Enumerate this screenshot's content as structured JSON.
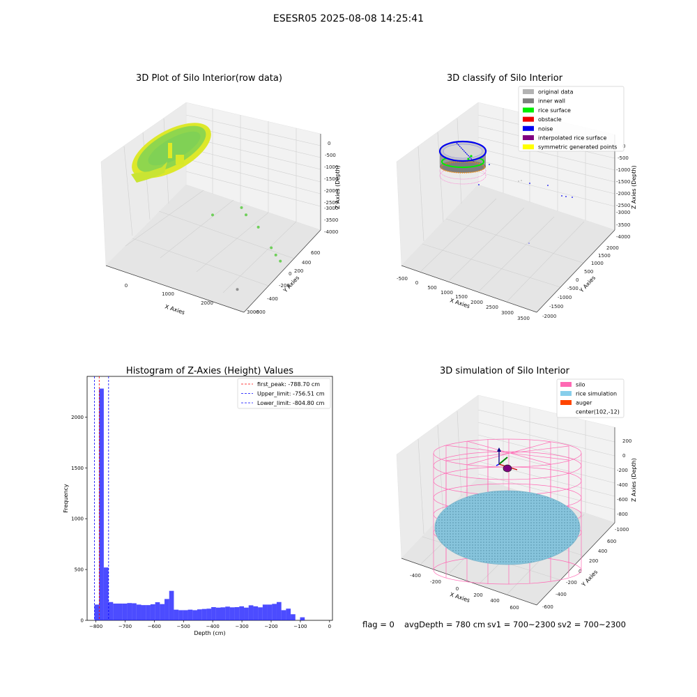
{
  "suptitle": "ESESR05 2025-08-08 14:25:41",
  "status_text": {
    "flag": "flag = 0",
    "avg": "avgDepth = 780 cm",
    "sv1": "sv1 = 700~2300",
    "sv2": "sv2 = 700~2300"
  },
  "chart_data": [
    {
      "type": "scatter",
      "title": "3D Plot of Silo Interior(row data)",
      "xlabel": "X Axies",
      "ylabel": "Y Axies",
      "zlabel": "Z Axies (Depth)",
      "x_ticks": [
        "0",
        "1000",
        "2000",
        "3000"
      ],
      "y_ticks": [
        "-600",
        "-400",
        "-200",
        "0",
        "200",
        "400",
        "600"
      ],
      "z_ticks": [
        "0",
        "-500",
        "-1000",
        "-1500",
        "-2000",
        "-2500",
        "-3000",
        "-3500",
        "-4000"
      ],
      "colors": {
        "main": "#9bd94a",
        "rim": "#e6ee1a",
        "stray": "#6fcf5a"
      },
      "stray_points": [
        {
          "x": 1300,
          "y": 100,
          "z": -2150
        },
        {
          "x": 1800,
          "y": 250,
          "z": -2000
        },
        {
          "x": 2000,
          "y": 200,
          "z": -2050
        },
        {
          "x": 2400,
          "y": 150,
          "z": -2200
        },
        {
          "x": 2900,
          "y": 50,
          "z": -2500
        },
        {
          "x": 3100,
          "y": 0,
          "z": -2550
        },
        {
          "x": 3300,
          "y": -50,
          "z": -2550
        },
        {
          "x": 2600,
          "y": -300,
          "z": -3400
        }
      ]
    },
    {
      "type": "scatter",
      "title": "3D classify of Silo Interior",
      "xlabel": "X Axies",
      "ylabel": "Y Axies",
      "zlabel": "Z Axies (Depth)",
      "x_ticks": [
        "-500",
        "0",
        "500",
        "1000",
        "1500",
        "2000",
        "2500",
        "3000",
        "3500"
      ],
      "y_ticks": [
        "-2000",
        "-1500",
        "-1000",
        "-500",
        "0",
        "500",
        "1000",
        "1500",
        "2000"
      ],
      "z_ticks": [
        "0",
        "-500",
        "-1000",
        "-1500",
        "-2000",
        "-2500",
        "-3000",
        "-3500",
        "-4000"
      ],
      "legend": [
        {
          "label": "original data",
          "color": "#b3b3b3"
        },
        {
          "label": "inner wall",
          "color": "#808080"
        },
        {
          "label": "rice surface",
          "color": "#00ee00"
        },
        {
          "label": "obstacle",
          "color": "#ee0000"
        },
        {
          "label": "noise",
          "color": "#0000ee"
        },
        {
          "label": "interpolated rice surface",
          "color": "#800080"
        },
        {
          "label": "symmetric generated points",
          "color": "#ffff00"
        }
      ]
    },
    {
      "type": "bar",
      "title": "Histogram of Z-Axies (Height) Values",
      "xlabel": "Depth (cm)",
      "ylabel": "Frequency",
      "xlim": [
        -830,
        10
      ],
      "ylim": [
        0,
        2400
      ],
      "x_ticks": [
        -800,
        -700,
        -600,
        -500,
        -400,
        -300,
        -200,
        -100,
        0
      ],
      "y_ticks": [
        0,
        500,
        1000,
        1500,
        2000
      ],
      "bar_color": "#0000ff",
      "bin_width": 16,
      "bin_start": -805,
      "values": [
        155,
        2280,
        520,
        180,
        165,
        165,
        165,
        170,
        168,
        155,
        150,
        150,
        158,
        178,
        160,
        210,
        290,
        105,
        100,
        100,
        105,
        100,
        108,
        112,
        115,
        130,
        125,
        128,
        135,
        128,
        130,
        138,
        125,
        148,
        138,
        128,
        155,
        155,
        162,
        180,
        100,
        115,
        60,
        0,
        30
      ],
      "reference_lines": [
        {
          "label": "first_peak: -788.70 cm",
          "value": -788.7,
          "color": "#ff0000"
        },
        {
          "label": "Upper_limit: -756.51 cm",
          "value": -756.51,
          "color": "#0000ff"
        },
        {
          "label": "Lower_limit: -804.80 cm",
          "value": -804.8,
          "color": "#0000ff"
        }
      ]
    },
    {
      "type": "scatter",
      "title": "3D simulation of Silo Interior",
      "xlabel": "X Axies",
      "ylabel": "Y Axies",
      "zlabel": "Z Axies (Depth)",
      "x_ticks": [
        "-400",
        "-200",
        "0",
        "200",
        "400",
        "600"
      ],
      "y_ticks": [
        "-600",
        "-400",
        "-200",
        "0",
        "200",
        "400",
        "600"
      ],
      "z_ticks": [
        "200",
        "0",
        "-200",
        "-400",
        "-600",
        "-800",
        "-1000"
      ],
      "legend": [
        {
          "label": "silo",
          "color": "#ff69b4"
        },
        {
          "label": "rice simulation",
          "color": "#87ceeb"
        },
        {
          "label": "auger",
          "color": "#ff4500"
        },
        {
          "label": "center(102,-12)",
          "color": ""
        }
      ]
    }
  ]
}
